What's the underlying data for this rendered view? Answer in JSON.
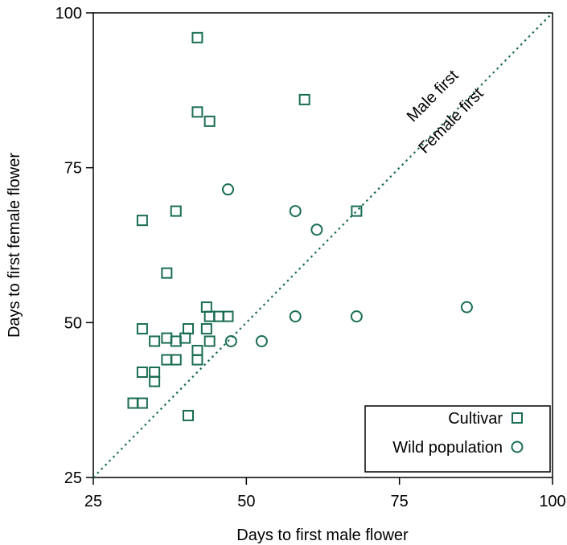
{
  "colors": {
    "marker": "#1a6e50",
    "axis": "#000000"
  },
  "chart_data": {
    "type": "scatter",
    "xlabel": "Days to first male flower",
    "ylabel": "Days to first female flower",
    "xlim": [
      25,
      100
    ],
    "ylim": [
      25,
      100
    ],
    "xticks": [
      "25",
      "50",
      "75",
      "100"
    ],
    "yticks": [
      "25",
      "50",
      "75",
      "100"
    ],
    "grid": false,
    "legend_position": "bottom-right",
    "reference_line": {
      "type": "diagonal",
      "from": [
        25,
        25
      ],
      "to": [
        100,
        100
      ],
      "style": "dotted"
    },
    "annotations": [
      {
        "text": "Male first",
        "x": 81,
        "y": 86
      },
      {
        "text": "Female first",
        "x": 84,
        "y": 82
      }
    ],
    "series": [
      {
        "name": "Cultivar",
        "marker": "square",
        "points": [
          [
            42,
            96
          ],
          [
            59.5,
            86
          ],
          [
            42,
            84
          ],
          [
            44,
            82.5
          ],
          [
            33,
            66.5
          ],
          [
            38.5,
            68
          ],
          [
            68,
            68
          ],
          [
            37,
            58
          ],
          [
            43.5,
            52.5
          ],
          [
            45.5,
            51
          ],
          [
            47,
            51
          ],
          [
            44,
            51
          ],
          [
            33,
            49
          ],
          [
            40.5,
            49
          ],
          [
            43.5,
            49
          ],
          [
            37,
            47.5
          ],
          [
            40,
            47.5
          ],
          [
            35,
            47
          ],
          [
            38.5,
            47
          ],
          [
            44,
            47
          ],
          [
            42,
            45.5
          ],
          [
            42,
            44
          ],
          [
            37,
            44
          ],
          [
            38.5,
            44
          ],
          [
            33,
            42
          ],
          [
            35,
            42
          ],
          [
            35,
            40.5
          ],
          [
            31.5,
            37
          ],
          [
            33,
            37
          ],
          [
            40.5,
            35
          ]
        ]
      },
      {
        "name": "Wild population",
        "marker": "circle",
        "points": [
          [
            47,
            71.5
          ],
          [
            58,
            68
          ],
          [
            61.5,
            65
          ],
          [
            86,
            52.5
          ],
          [
            58,
            51
          ],
          [
            68,
            51
          ],
          [
            47.5,
            47
          ],
          [
            52.5,
            47
          ]
        ]
      }
    ]
  }
}
